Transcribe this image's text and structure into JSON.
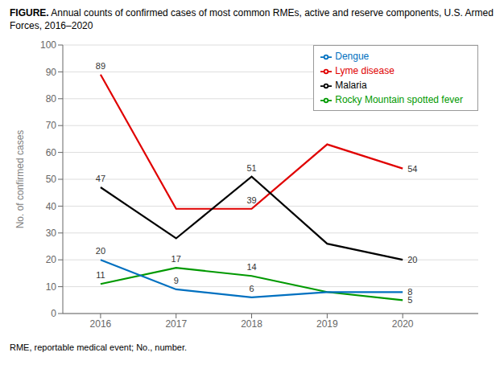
{
  "chart_data": {
    "type": "line",
    "title": "FIGURE. Annual counts of confirmed cases of most common RMEs, active and reserve components, U.S. Armed Forces, 2016–2020",
    "footnote": "RME, reportable medical event; No., number.",
    "y_label": "No. of confirmed cases",
    "x": [
      2016,
      2017,
      2018,
      2019,
      2020
    ],
    "series": [
      {
        "name": "Lyme disease",
        "color": "#e00000",
        "values": [
          89,
          39,
          39,
          63,
          54
        ],
        "value_labels": [
          "89",
          null,
          "39",
          null,
          "54"
        ]
      },
      {
        "name": "Malaria",
        "color": "#000000",
        "values": [
          47,
          28,
          51,
          26,
          20
        ],
        "value_labels": [
          "47",
          null,
          "51",
          null,
          "20"
        ]
      },
      {
        "name": "Rocky Mountain spotted fever",
        "color": "#009900",
        "values": [
          11,
          17,
          14,
          8,
          5
        ],
        "value_labels": [
          "11",
          "17",
          "14",
          null,
          "5"
        ]
      },
      {
        "name": "Dengue",
        "color": "#0070c0",
        "values": [
          20,
          9,
          6,
          8,
          8
        ],
        "value_labels": [
          "20",
          "9",
          "6",
          null,
          "8"
        ]
      }
    ],
    "xlim": [
      2015.5,
      2021
    ],
    "xticks": [
      2016,
      2017,
      2018,
      2019,
      2020
    ],
    "ylim": [
      0,
      100
    ],
    "yticks": [
      0,
      10,
      20,
      30,
      40,
      50,
      60,
      70,
      80,
      90,
      100
    ],
    "grid": true,
    "legend": "upper right",
    "data_labels": true
  }
}
